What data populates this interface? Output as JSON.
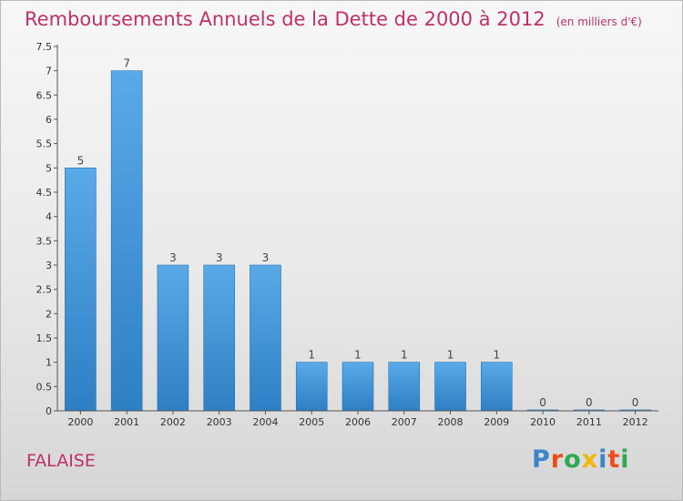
{
  "header": {
    "title": "Remboursements Annuels de la Dette de 2000 à 2012",
    "unit": "(en milliers d'€)"
  },
  "footer": {
    "commune": "FALAISE",
    "brand": "Proxiti",
    "brand_colors": [
      "#3a86c8",
      "#e94e1b",
      "#2fa84f",
      "#f2b705",
      "#3a86c8",
      "#e94e1b",
      "#2fa84f"
    ]
  },
  "chart_data": {
    "type": "bar",
    "categories": [
      "2000",
      "2001",
      "2002",
      "2003",
      "2004",
      "2005",
      "2006",
      "2007",
      "2008",
      "2009",
      "2010",
      "2011",
      "2012"
    ],
    "values": [
      5,
      7,
      3,
      3,
      3,
      1,
      1,
      1,
      1,
      1,
      0,
      0,
      0
    ],
    "data_labels": [
      "5",
      "7",
      "3",
      "3",
      "3",
      "1",
      "1",
      "1",
      "1",
      "1",
      "0",
      "0",
      "0"
    ],
    "yticks": [
      "0",
      "0.5",
      "1",
      "1.5",
      "2",
      "2.5",
      "3",
      "3.5",
      "4",
      "4.5",
      "5",
      "5.5",
      "6",
      "6.5",
      "7",
      "7.5"
    ],
    "ylim": [
      0,
      7.5
    ],
    "bar_color": "#4e9fe0",
    "grid": false,
    "legend": "none"
  }
}
